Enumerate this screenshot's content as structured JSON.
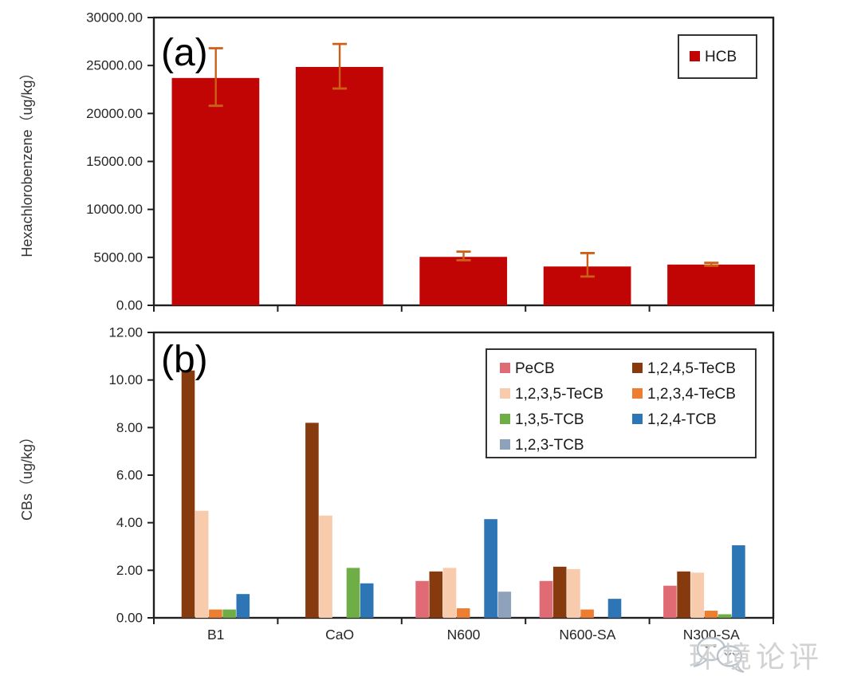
{
  "figure": {
    "background": "#ffffff",
    "axis_color": "#1f1f1f",
    "tick_label_color": "#262626"
  },
  "watermark": {
    "text": "环境论评",
    "icon": "wechat-logo-icon"
  },
  "chart_data": [
    {
      "panel": "a",
      "type": "bar",
      "title": "(a)",
      "ylabel": "Hexachlorobenzene（ug/kg）",
      "xlabel": "",
      "categories": [
        "B1",
        "CaO",
        "N600",
        "N600-SA",
        "N300-SA"
      ],
      "series": [
        {
          "name": "HCB",
          "color": "#c10505",
          "values": [
            23700,
            24850,
            5050,
            4050,
            4250
          ],
          "err_low": [
            2900,
            2250,
            350,
            1050,
            120
          ],
          "err_high": [
            3100,
            2400,
            550,
            1400,
            180
          ]
        }
      ],
      "error_bar_color": "#cc6016",
      "ylim": [
        0,
        30000
      ],
      "ytick_step": 5000,
      "ytick_labels": [
        "0.00",
        "5000.00",
        "10000.00",
        "15000.00",
        "20000.00",
        "25000.00",
        "30000.00"
      ],
      "grid": "off",
      "show_x_labels": false,
      "legend": {
        "labels": [
          "HCB"
        ],
        "position": "top-right"
      }
    },
    {
      "panel": "b",
      "type": "bar",
      "title": "(b)",
      "ylabel": "CBs（ug/kg）",
      "xlabel": "",
      "categories": [
        "B1",
        "CaO",
        "N600",
        "N600-SA",
        "N300-SA"
      ],
      "series": [
        {
          "name": "PeCB",
          "color": "#e06b74",
          "values": [
            0,
            0,
            1.55,
            1.55,
            1.35
          ]
        },
        {
          "name": "1,2,4,5-TeCB",
          "color": "#873a0e",
          "values": [
            10.4,
            8.2,
            1.95,
            2.15,
            1.95
          ]
        },
        {
          "name": "1,2,3,5-TeCB",
          "color": "#f8cbad",
          "values": [
            4.5,
            4.3,
            2.1,
            2.05,
            1.9
          ]
        },
        {
          "name": "1,2,3,4-TeCB",
          "color": "#ed7d31",
          "values": [
            0.35,
            0,
            0.4,
            0.35,
            0.3
          ]
        },
        {
          "name": "1,3,5-TCB",
          "color": "#6fae46",
          "values": [
            0.35,
            2.1,
            0,
            0,
            0.15
          ]
        },
        {
          "name": "1,2,4-TCB",
          "color": "#2e75b6",
          "values": [
            1.0,
            1.45,
            4.15,
            0.8,
            3.05
          ]
        },
        {
          "name": "1,2,3-TCB",
          "color": "#8fa2bc",
          "values": [
            0,
            0,
            1.1,
            0,
            0
          ]
        }
      ],
      "ylim": [
        0,
        12
      ],
      "ytick_step": 2,
      "ytick_labels": [
        "0.00",
        "2.00",
        "4.00",
        "6.00",
        "8.00",
        "10.00",
        "12.00"
      ],
      "grid": "off",
      "show_x_labels": true,
      "legend": {
        "labels": [
          "PeCB",
          "1,2,4,5-TeCB",
          "1,2,3,5-TeCB",
          "1,2,3,4-TeCB",
          "1,3,5-TCB",
          "1,2,4-TCB",
          "1,2,3-TCB"
        ],
        "position": "top-middle-right",
        "columns": 2
      }
    }
  ]
}
